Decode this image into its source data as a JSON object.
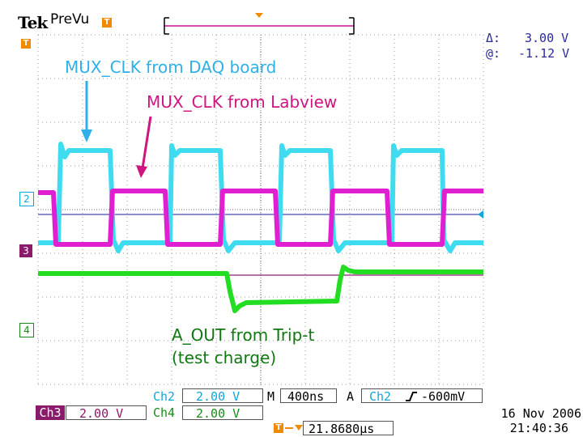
{
  "header": {
    "brand": "Tek",
    "mode": "PreVu",
    "trigger_marker": "T"
  },
  "cursors": {
    "delta_label": "Δ:",
    "delta_value": "3.00 V",
    "at_label": "@:",
    "at_value": "-1.12 V"
  },
  "annotations": {
    "daq": "MUX_CLK from DAQ board",
    "labview": "MUX_CLK from Labview",
    "aout_line1": "A_OUT from Trip-t",
    "aout_line2": "(test charge)"
  },
  "channels": {
    "ch2_marker": "2",
    "ch3_marker": "3",
    "ch4_marker": "4"
  },
  "status": {
    "ch2_label": "Ch2",
    "ch2_scale": "2.00 V",
    "ch3_label": "Ch3",
    "ch3_scale": "2.00 V",
    "ch4_label": "Ch4",
    "ch4_scale": "2.00 V",
    "timebase_label": "M",
    "timebase_value": "400ns",
    "trigger_label": "A",
    "trigger_source": "Ch2",
    "trigger_level": "-600mV",
    "trigger_pos_value": "21.8680µs"
  },
  "datetime": {
    "date": "16 Nov 2006",
    "time": "21:40:36"
  },
  "colors": {
    "ch2": "#3fdcf0",
    "ch3": "#e020d0",
    "ch4": "#22dd22",
    "grid": "#8a8a8a",
    "cursor": "#4a4ab0"
  }
}
